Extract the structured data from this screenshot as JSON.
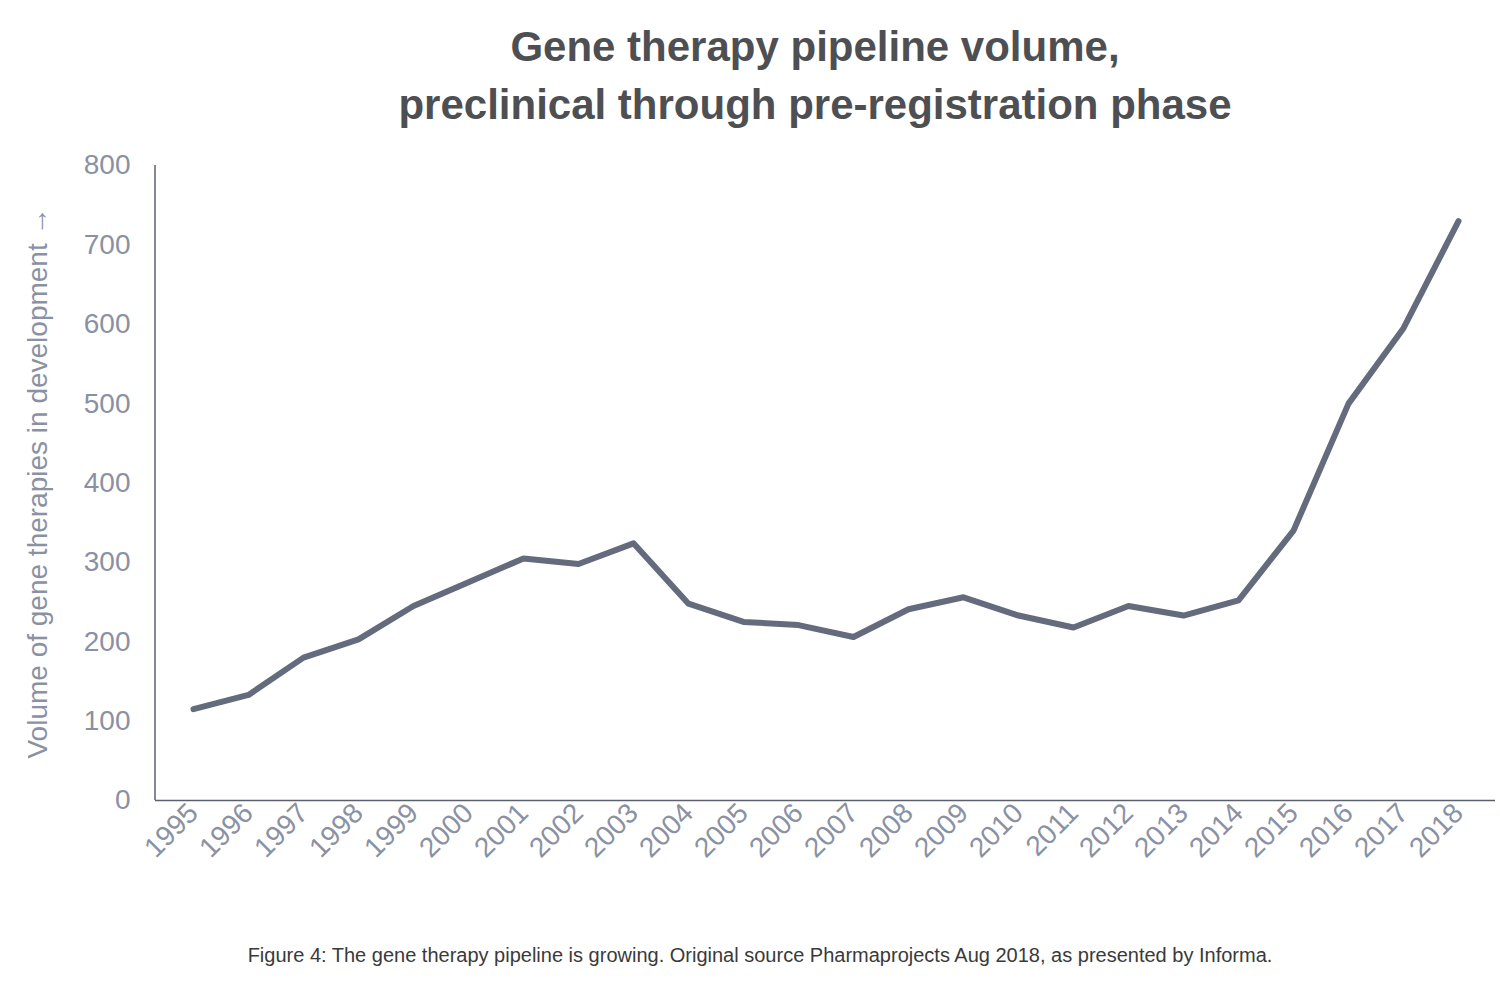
{
  "chart_data": {
    "type": "line",
    "title": "Gene therapy pipeline volume, preclinical through pre-registration phase",
    "caption": "Figure 4: The gene therapy pipeline is growing. Original source Pharmaprojects Aug 2018, as presented by Informa.",
    "y_label": "Volume of gene therapies in development",
    "categories": [
      "1995",
      "1996",
      "1997",
      "1998",
      "1999",
      "2000",
      "2001",
      "2002",
      "2003",
      "2004",
      "2005",
      "2006",
      "2007",
      "2008",
      "2009",
      "2010",
      "2011",
      "2012",
      "2013",
      "2014",
      "2015",
      "2016",
      "2017",
      "2018"
    ],
    "values": [
      115,
      133,
      180,
      203,
      245,
      275,
      305,
      298,
      324,
      248,
      225,
      221,
      206,
      241,
      256,
      233,
      218,
      245,
      233,
      252,
      340,
      500,
      595,
      730
    ],
    "color": "#636b7c",
    "ylim": [
      0,
      800
    ],
    "yticks": [
      0,
      100,
      200,
      300,
      400,
      500,
      600,
      700,
      800
    ],
    "grid": false
  }
}
